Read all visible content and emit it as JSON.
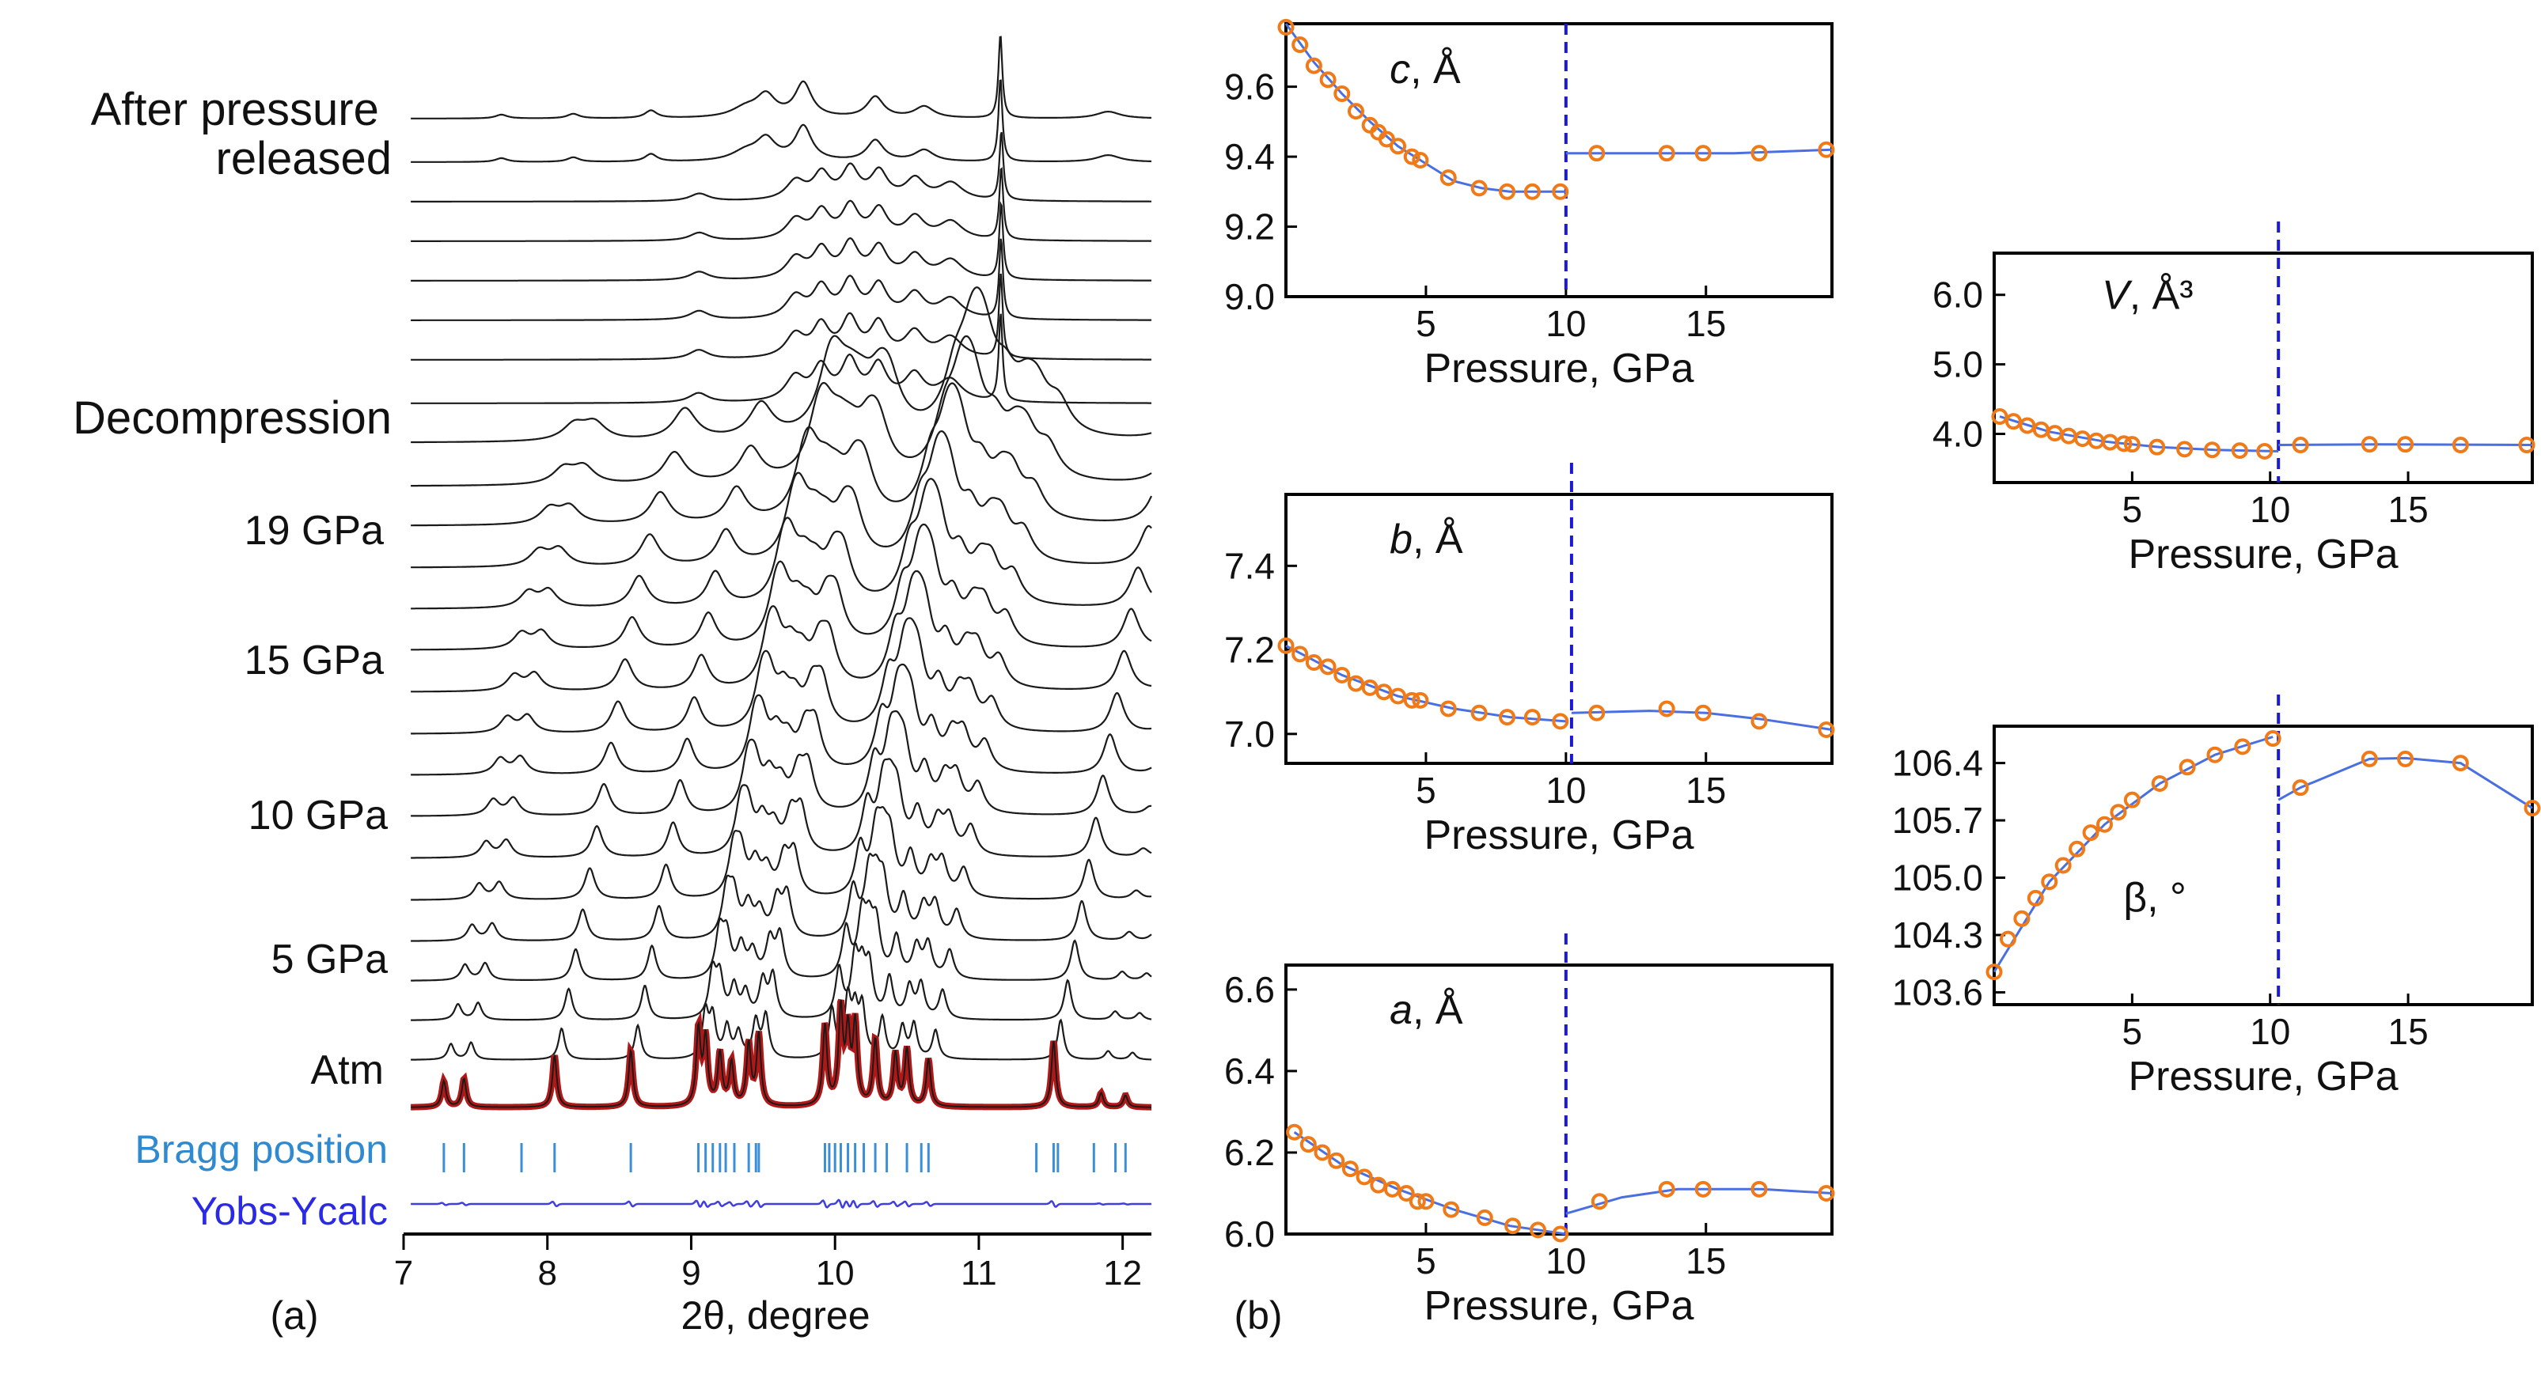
{
  "panel_labels": {
    "a": "(a)",
    "b": "(b)"
  },
  "chart_data": [
    {
      "id": "xrd",
      "type": "line",
      "title": "",
      "xlabel": "2θ, degree",
      "ylabel": "",
      "xlim": [
        7,
        12.2
      ],
      "xticks": [
        7,
        8,
        9,
        10,
        11,
        12
      ],
      "xtick_labels": [
        "7",
        "8",
        "9",
        "10",
        "11",
        "12"
      ],
      "offset_labels": {
        "after": "After pressure\nreleased",
        "decomp": "Decompression",
        "p19": "19 GPa",
        "p15": "15 GPa",
        "p10": "10 GPa",
        "p5": "5 GPa",
        "atm": "Atm",
        "bragg": "Bragg position",
        "diff": "Yobs-Ycalc"
      },
      "pressure_pattern_shift_per_GPa": 0.0035,
      "release_pattern_peaks": [
        [
          7.68,
          0.1,
          0.05
        ],
        [
          8.18,
          0.12,
          0.05
        ],
        [
          8.72,
          0.2,
          0.05
        ],
        [
          9.38,
          0.25,
          0.12
        ],
        [
          9.52,
          0.55,
          0.08
        ],
        [
          9.78,
          0.9,
          0.07
        ],
        [
          10.28,
          0.55,
          0.07
        ],
        [
          10.62,
          0.3,
          0.08
        ],
        [
          11.15,
          2.2,
          0.016
        ],
        [
          11.9,
          0.18,
          0.1
        ]
      ],
      "decompression_pattern_peaks": [
        [
          9.05,
          0.22,
          0.08
        ],
        [
          9.72,
          0.55,
          0.08
        ],
        [
          9.9,
          0.75,
          0.07
        ],
        [
          10.1,
          0.9,
          0.07
        ],
        [
          10.3,
          0.8,
          0.07
        ],
        [
          10.55,
          0.6,
          0.08
        ],
        [
          10.8,
          0.5,
          0.1
        ],
        [
          11.15,
          2.0,
          0.016
        ]
      ],
      "atm_peaks": [
        [
          7.28,
          0.55
        ],
        [
          7.42,
          0.6
        ],
        [
          8.05,
          1.1
        ],
        [
          8.58,
          1.2
        ],
        [
          9.05,
          1.6
        ],
        [
          9.1,
          1.4
        ],
        [
          9.2,
          1.1
        ],
        [
          9.28,
          0.9
        ],
        [
          9.4,
          1.3
        ],
        [
          9.47,
          1.5
        ],
        [
          9.93,
          1.7
        ],
        [
          10.04,
          2.0
        ],
        [
          10.09,
          1.5
        ],
        [
          10.14,
          1.7
        ],
        [
          10.28,
          1.4
        ],
        [
          10.42,
          1.1
        ],
        [
          10.5,
          1.2
        ],
        [
          10.65,
          1.0
        ],
        [
          11.52,
          1.4
        ],
        [
          11.85,
          0.3
        ],
        [
          12.02,
          0.25
        ]
      ],
      "bragg_positions": [
        7.28,
        7.42,
        7.82,
        8.05,
        8.58,
        9.05,
        9.1,
        9.15,
        9.2,
        9.24,
        9.3,
        9.4,
        9.45,
        9.47,
        9.93,
        9.96,
        10.0,
        10.04,
        10.09,
        10.14,
        10.2,
        10.28,
        10.36,
        10.5,
        10.6,
        10.65,
        11.4,
        11.52,
        11.55,
        11.8,
        11.95,
        12.02
      ],
      "line_colors": {
        "pattern": "#1a1a1a",
        "fit": "#b01818",
        "bragg": "#3a8fd8",
        "diff": "#3f3fe0"
      }
    },
    {
      "id": "c",
      "type": "scatter",
      "title": "",
      "label": "c, Å",
      "label_main": "c",
      "label_unit": ", Å",
      "xlabel": "Pressure, GPa",
      "ylabel": "",
      "xlim": [
        0,
        19.5
      ],
      "ylim": [
        9.0,
        9.78
      ],
      "xticks": [
        5,
        10,
        15
      ],
      "xtick_labels": [
        "5",
        "10",
        "15"
      ],
      "yticks": [
        9.0,
        9.2,
        9.4,
        9.6
      ],
      "ytick_labels": [
        "9.0",
        "9.2",
        "9.4",
        "9.6"
      ],
      "transition": 10,
      "x": [
        0,
        0.5,
        1.0,
        1.5,
        2.0,
        2.5,
        3.0,
        3.3,
        3.6,
        4.0,
        4.5,
        4.8,
        5.8,
        6.9,
        7.9,
        8.8,
        9.8,
        11.1,
        13.6,
        14.9,
        16.9,
        19.3
      ],
      "y": [
        9.77,
        9.72,
        9.66,
        9.62,
        9.58,
        9.53,
        9.49,
        9.47,
        9.45,
        9.43,
        9.4,
        9.39,
        9.34,
        9.31,
        9.3,
        9.3,
        9.3,
        9.41,
        9.41,
        9.41,
        9.41,
        9.42
      ],
      "fit_low": [
        [
          0,
          9.78
        ],
        [
          1,
          9.67
        ],
        [
          2,
          9.58
        ],
        [
          3,
          9.5
        ],
        [
          4,
          9.43
        ],
        [
          5,
          9.38
        ],
        [
          6,
          9.33
        ],
        [
          7,
          9.31
        ],
        [
          8,
          9.3
        ],
        [
          9,
          9.3
        ],
        [
          10,
          9.3
        ]
      ],
      "fit_high": [
        [
          10,
          9.41
        ],
        [
          13,
          9.41
        ],
        [
          16,
          9.41
        ],
        [
          19.5,
          9.42
        ]
      ]
    },
    {
      "id": "b",
      "type": "scatter",
      "title": "",
      "label": "b, Å",
      "label_main": "b",
      "label_unit": ", Å",
      "xlabel": "Pressure, GPa",
      "ylabel": "",
      "xlim": [
        0,
        19.5
      ],
      "ylim": [
        6.93,
        7.57
      ],
      "xticks": [
        5,
        10,
        15
      ],
      "xtick_labels": [
        "5",
        "10",
        "15"
      ],
      "yticks": [
        7.0,
        7.2,
        7.4
      ],
      "ytick_labels": [
        "7.0",
        "7.2",
        "7.4"
      ],
      "transition": 10.2,
      "x": [
        0,
        0.5,
        1.0,
        1.5,
        2.0,
        2.5,
        3.0,
        3.5,
        4.0,
        4.5,
        4.8,
        5.8,
        6.9,
        7.9,
        8.8,
        9.8,
        11.1,
        13.6,
        14.9,
        16.9,
        19.3
      ],
      "y": [
        7.21,
        7.19,
        7.17,
        7.16,
        7.14,
        7.12,
        7.11,
        7.1,
        7.09,
        7.08,
        7.08,
        7.06,
        7.05,
        7.04,
        7.04,
        7.03,
        7.05,
        7.06,
        7.05,
        7.03,
        7.01
      ],
      "fit_low": [
        [
          0,
          7.21
        ],
        [
          2,
          7.14
        ],
        [
          4,
          7.09
        ],
        [
          6,
          7.06
        ],
        [
          8,
          7.04
        ],
        [
          10,
          7.03
        ]
      ],
      "fit_high": [
        [
          10.2,
          7.05
        ],
        [
          13,
          7.055
        ],
        [
          15,
          7.05
        ],
        [
          17,
          7.035
        ],
        [
          19.5,
          7.01
        ]
      ]
    },
    {
      "id": "a",
      "type": "scatter",
      "title": "",
      "label": "a, Å",
      "label_main": "a",
      "label_unit": ", Å",
      "xlabel": "Pressure, GPa",
      "ylabel": "",
      "xlim": [
        0,
        19.5
      ],
      "ylim": [
        6.0,
        6.66
      ],
      "xticks": [
        5,
        10,
        15
      ],
      "xtick_labels": [
        "5",
        "10",
        "15"
      ],
      "yticks": [
        6.0,
        6.2,
        6.4,
        6.6
      ],
      "ytick_labels": [
        "6.0",
        "6.2",
        "6.4",
        "6.6"
      ],
      "transition": 10,
      "x": [
        0.3,
        0.8,
        1.3,
        1.8,
        2.3,
        2.8,
        3.3,
        3.8,
        4.3,
        4.7,
        5.0,
        5.9,
        7.1,
        8.1,
        9.0,
        9.8,
        11.2,
        13.6,
        14.9,
        16.9,
        19.3
      ],
      "y": [
        6.25,
        6.22,
        6.2,
        6.18,
        6.16,
        6.14,
        6.12,
        6.11,
        6.1,
        6.08,
        6.08,
        6.06,
        6.04,
        6.02,
        6.01,
        6.0,
        6.08,
        6.11,
        6.11,
        6.11,
        6.1
      ],
      "fit_low": [
        [
          0.3,
          6.25
        ],
        [
          2,
          6.17
        ],
        [
          4,
          6.11
        ],
        [
          6,
          6.06
        ],
        [
          8,
          6.02
        ],
        [
          10,
          6.0
        ]
      ],
      "fit_high": [
        [
          10,
          6.05
        ],
        [
          12,
          6.09
        ],
        [
          14,
          6.11
        ],
        [
          17,
          6.11
        ],
        [
          19.5,
          6.1
        ]
      ]
    },
    {
      "id": "V",
      "type": "scatter",
      "title": "",
      "label": "V, Å³",
      "label_main": "V",
      "label_unit": ", Å³",
      "xlabel": "Pressure, GPa",
      "ylabel": "",
      "xlim": [
        0,
        19.5
      ],
      "ylim": [
        3.3,
        6.6
      ],
      "xticks": [
        5,
        10,
        15
      ],
      "xtick_labels": [
        "5",
        "10",
        "15"
      ],
      "yticks": [
        4.0,
        5.0,
        6.0
      ],
      "ytick_labels": [
        "4.0",
        "5.0",
        "6.0"
      ],
      "transition": 10.3,
      "x": [
        0.2,
        0.7,
        1.2,
        1.7,
        2.2,
        2.7,
        3.2,
        3.7,
        4.2,
        4.7,
        5.0,
        5.9,
        6.9,
        7.9,
        8.9,
        9.8,
        11.1,
        13.6,
        14.9,
        16.9,
        19.3
      ],
      "y": [
        4.25,
        4.18,
        4.12,
        4.06,
        4.01,
        3.97,
        3.93,
        3.9,
        3.88,
        3.86,
        3.85,
        3.81,
        3.78,
        3.77,
        3.76,
        3.75,
        3.84,
        3.85,
        3.85,
        3.84,
        3.84
      ],
      "fit_low": [
        [
          0.2,
          4.25
        ],
        [
          2,
          4.03
        ],
        [
          4,
          3.89
        ],
        [
          6,
          3.81
        ],
        [
          8,
          3.77
        ],
        [
          10.3,
          3.75
        ]
      ],
      "fit_high": [
        [
          10.3,
          3.84
        ],
        [
          14,
          3.85
        ],
        [
          19.5,
          3.84
        ]
      ]
    },
    {
      "id": "beta",
      "type": "scatter",
      "title": "",
      "label": "β, °",
      "label_main": "β",
      "label_unit": ", °",
      "xlabel": "Pressure, GPa",
      "ylabel": "",
      "xlim": [
        0,
        19.5
      ],
      "ylim": [
        103.45,
        106.85
      ],
      "xticks": [
        5,
        10,
        15
      ],
      "xtick_labels": [
        "5",
        "10",
        "15"
      ],
      "yticks": [
        103.6,
        104.3,
        105.0,
        105.7,
        106.4
      ],
      "ytick_labels": [
        "103.6",
        "104.3",
        "105.0",
        "105.7",
        "106.4"
      ],
      "transition": 10.3,
      "x": [
        0,
        0.5,
        1.0,
        1.5,
        2.0,
        2.5,
        3.0,
        3.5,
        4.0,
        4.5,
        5.0,
        6.0,
        7.0,
        8.0,
        9.0,
        10.1,
        11.1,
        13.6,
        14.9,
        16.9,
        19.5
      ],
      "y": [
        103.85,
        104.25,
        104.5,
        104.75,
        104.95,
        105.15,
        105.35,
        105.55,
        105.65,
        105.8,
        105.95,
        106.15,
        106.35,
        106.5,
        106.6,
        106.7,
        106.1,
        106.45,
        106.45,
        106.4,
        105.85
      ],
      "fit_low": [
        [
          0,
          103.85
        ],
        [
          2,
          104.95
        ],
        [
          4,
          105.65
        ],
        [
          6,
          106.15
        ],
        [
          8,
          106.5
        ],
        [
          10.1,
          106.72
        ]
      ],
      "fit_high": [
        [
          10.3,
          105.95
        ],
        [
          11.1,
          106.1
        ],
        [
          13.6,
          106.45
        ],
        [
          14.9,
          106.46
        ],
        [
          16.9,
          106.4
        ],
        [
          19.5,
          105.85
        ]
      ]
    }
  ]
}
